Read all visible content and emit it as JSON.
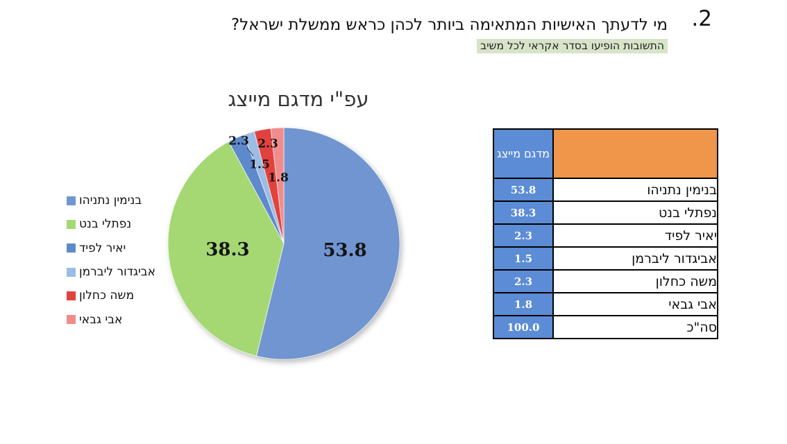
{
  "page": {
    "question_number": "2.",
    "question_title": "מי לדעתך האישיות המתאימה ביותר לכהן כראש ממשלת ישראל?",
    "question_note": "התשובות הופיעו בסדר אקראי לכל משיב",
    "note_highlight_color": "#D8E4C8"
  },
  "chart_data": {
    "type": "pie",
    "title": "עפ\"י מדגם מייצג",
    "categories": [
      "בנימין נתניהו",
      "נפתלי בנט",
      "יאיר לפיד",
      "אביגדור ליברמן",
      "משה כחלון",
      "אבי גבאי"
    ],
    "values": [
      53.8,
      38.3,
      2.3,
      1.5,
      2.3,
      1.8
    ],
    "data_labels": [
      "53.8",
      "38.3",
      "2.3",
      "1.5",
      "2.3",
      "1.8"
    ],
    "colors": [
      "#7095D1",
      "#A5D873",
      "#5E89CC",
      "#9BBCE4",
      "#E2423E",
      "#F08C8C"
    ],
    "legend_position": "left",
    "start_angle_deg": 0,
    "direction": "clockwise",
    "total": 100.0
  },
  "table": {
    "header": {
      "value_col": "מדגם מייצג",
      "name_col": ""
    },
    "header_colors": {
      "value_bg": "#5C8CD5",
      "name_bg": "#F0964B"
    },
    "value_cell_color": "#5C8CD5",
    "rows": [
      {
        "name": "בנימין נתניהו",
        "value": "53.8"
      },
      {
        "name": "נפתלי בנט",
        "value": "38.3"
      },
      {
        "name": "יאיר לפיד",
        "value": "2.3"
      },
      {
        "name": "אביגדור ליברמן",
        "value": "1.5"
      },
      {
        "name": "משה כחלון",
        "value": "2.3"
      },
      {
        "name": "אבי גבאי",
        "value": "1.8"
      },
      {
        "name": "סה\"כ",
        "value": "100.0"
      }
    ]
  }
}
